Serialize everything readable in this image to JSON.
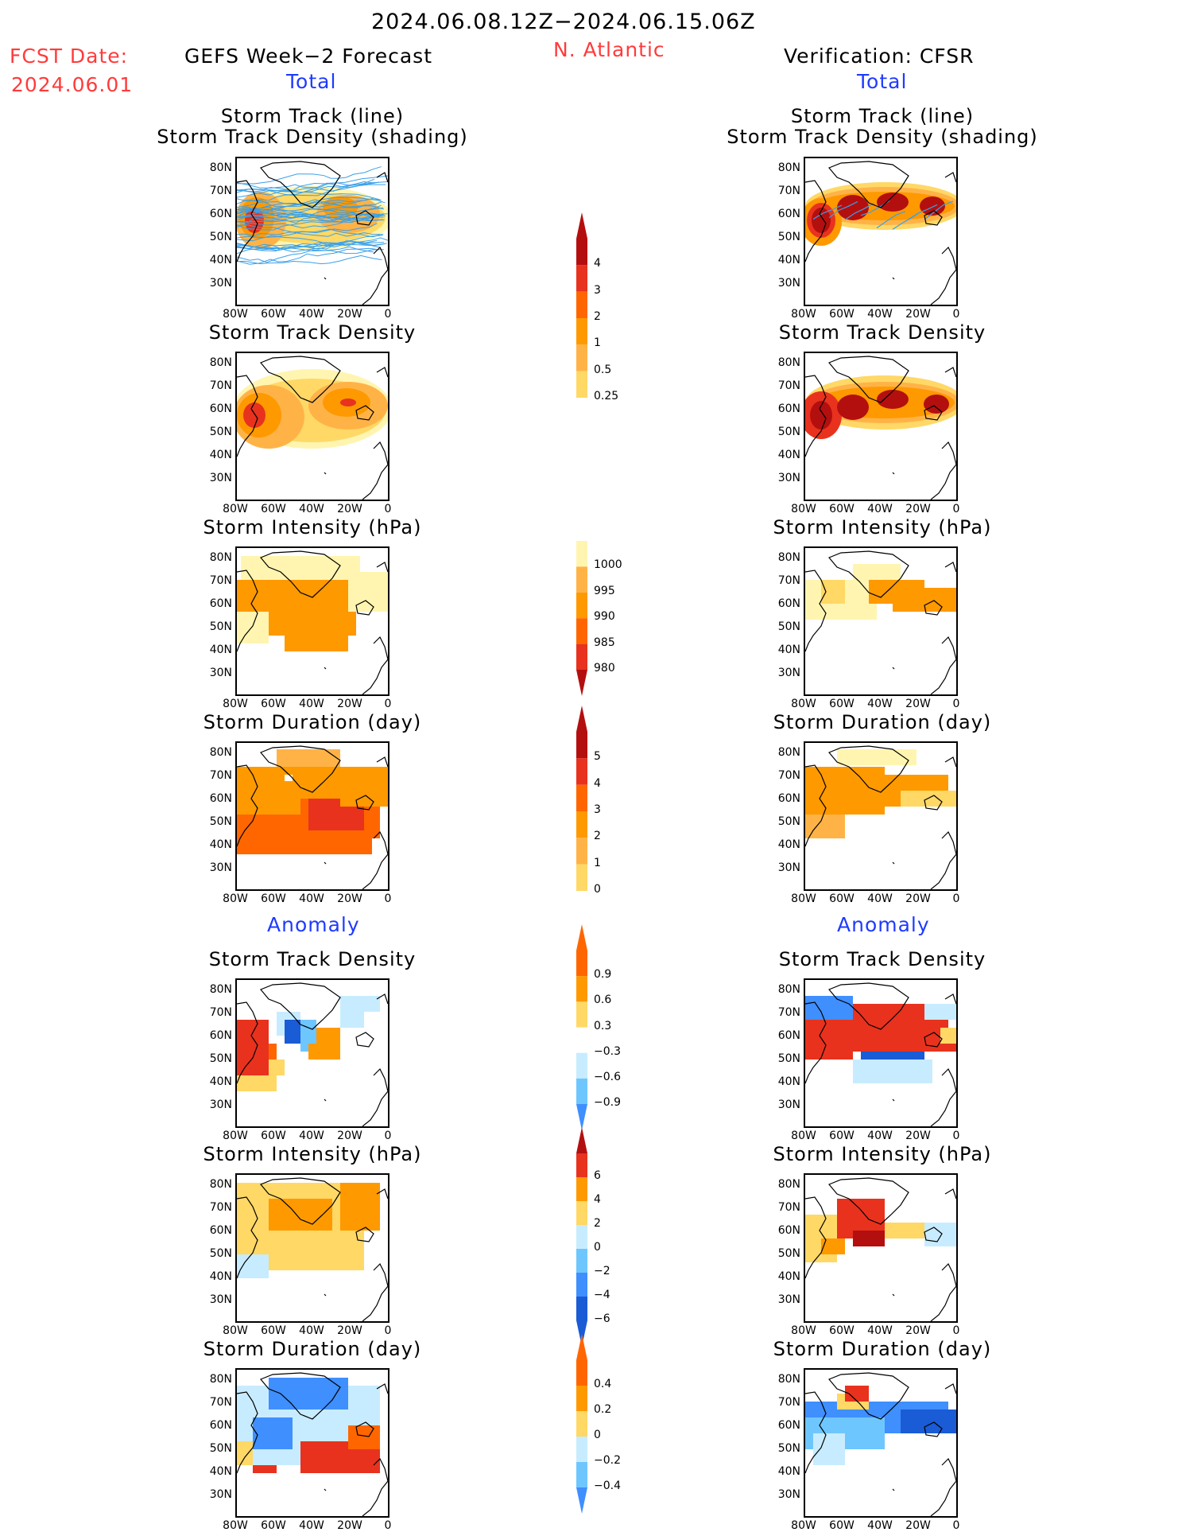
{
  "header": {
    "date_range": "2024.06.08.12Z−2024.06.15.06Z",
    "fcst_label": "FCST Date:",
    "fcst_date": "2024.06.01",
    "left_model": "GEFS Week−2 Forecast",
    "region": "N. Atlantic",
    "right_model": "Verification: CFSR",
    "total_left": "Total",
    "total_right": "Total",
    "anomaly_left": "Anomaly",
    "anomaly_right": "Anomaly"
  },
  "panel_titles": {
    "track_line": "Storm Track (line)",
    "track_shading": "Storm Track Density (shading)",
    "density": "Storm Track Density",
    "intensity": "Storm Intensity (hPa)",
    "duration": "Storm Duration (day)"
  },
  "axes": {
    "lat_ticks": [
      "80N",
      "70N",
      "60N",
      "50N",
      "40N",
      "30N"
    ],
    "lon_ticks": [
      "80W",
      "60W",
      "40W",
      "20W",
      "0"
    ]
  },
  "colors": {
    "yellow_light": "#fff5b0",
    "yellow": "#ffd866",
    "orange_light": "#ffb347",
    "orange": "#ff9900",
    "orange_dark": "#ff6600",
    "red": "#e8321e",
    "dark_red": "#b40f0f",
    "blue_light": "#c8ecff",
    "blue_mid": "#6ec6ff",
    "blue": "#3f8fff",
    "blue_dark": "#1a5bd6",
    "track_line": "#3aa0e8",
    "accent_red": "#ff3b3b",
    "accent_blue": "#1f3bff"
  },
  "colorbars": {
    "density": [
      "4",
      "3",
      "2",
      "1",
      "0.5",
      "0.25"
    ],
    "intensity": [
      "1000",
      "995",
      "990",
      "985",
      "980"
    ],
    "duration": [
      "5",
      "4",
      "3",
      "2",
      "1",
      "0"
    ],
    "density_anom": [
      "0.9",
      "0.6",
      "0.3",
      "−0.3",
      "−0.6",
      "−0.9"
    ],
    "intensity_anom": [
      "6",
      "4",
      "2",
      "0",
      "−2",
      "−4",
      "−6"
    ],
    "duration_anom": [
      "0.4",
      "0.2",
      "0",
      "−0.2",
      "−0.4"
    ]
  },
  "chart_data": [
    {
      "type": "heatmap",
      "panel": "GEFS Total Storm Track (line) / Storm Track Density (shading)",
      "region": "N. Atlantic",
      "lat_range": [
        "30N",
        "80N"
      ],
      "lon_range": [
        "80W",
        "0"
      ],
      "levels": [
        0.25,
        0.5,
        1,
        2,
        3,
        4
      ],
      "max_centers": [
        {
          "lon": -72,
          "lat": 53,
          "value": 3
        },
        {
          "lon": -25,
          "lat": 57,
          "value": 2
        }
      ]
    },
    {
      "type": "heatmap",
      "panel": "GEFS Total Storm Track Density",
      "levels": [
        0.25,
        0.5,
        1,
        2,
        3,
        4
      ]
    },
    {
      "type": "heatmap",
      "panel": "GEFS Total Storm Intensity (hPa)",
      "levels": [
        1000,
        995,
        990,
        985,
        980
      ]
    },
    {
      "type": "heatmap",
      "panel": "GEFS Total Storm Duration (day)",
      "levels": [
        0,
        1,
        2,
        3,
        4,
        5
      ]
    },
    {
      "type": "heatmap",
      "panel": "CFSR Total Storm Track (line) / Storm Track Density (shading)",
      "levels": [
        0.25,
        0.5,
        1,
        2,
        3,
        4
      ]
    },
    {
      "type": "heatmap",
      "panel": "CFSR Total Storm Track Density",
      "levels": [
        0.25,
        0.5,
        1,
        2,
        3,
        4
      ]
    },
    {
      "type": "heatmap",
      "panel": "CFSR Total Storm Intensity (hPa)",
      "levels": [
        1000,
        995,
        990,
        985,
        980
      ]
    },
    {
      "type": "heatmap",
      "panel": "CFSR Total Storm Duration (day)",
      "levels": [
        0,
        1,
        2,
        3,
        4,
        5
      ]
    },
    {
      "type": "heatmap",
      "panel": "GEFS Anomaly Storm Track Density",
      "levels": [
        -0.9,
        -0.6,
        -0.3,
        0.3,
        0.6,
        0.9
      ]
    },
    {
      "type": "heatmap",
      "panel": "GEFS Anomaly Storm Intensity (hPa)",
      "levels": [
        -6,
        -4,
        -2,
        0,
        2,
        4,
        6
      ]
    },
    {
      "type": "heatmap",
      "panel": "GEFS Anomaly Storm Duration (day)",
      "levels": [
        -0.4,
        -0.2,
        0,
        0.2,
        0.4
      ]
    },
    {
      "type": "heatmap",
      "panel": "CFSR Anomaly Storm Track Density",
      "levels": [
        -0.9,
        -0.6,
        -0.3,
        0.3,
        0.6,
        0.9
      ]
    },
    {
      "type": "heatmap",
      "panel": "CFSR Anomaly Storm Intensity (hPa)",
      "levels": [
        -6,
        -4,
        -2,
        0,
        2,
        4,
        6
      ]
    },
    {
      "type": "heatmap",
      "panel": "CFSR Anomaly Storm Duration (day)",
      "levels": [
        -0.4,
        -0.2,
        0,
        0.2,
        0.4
      ]
    }
  ]
}
